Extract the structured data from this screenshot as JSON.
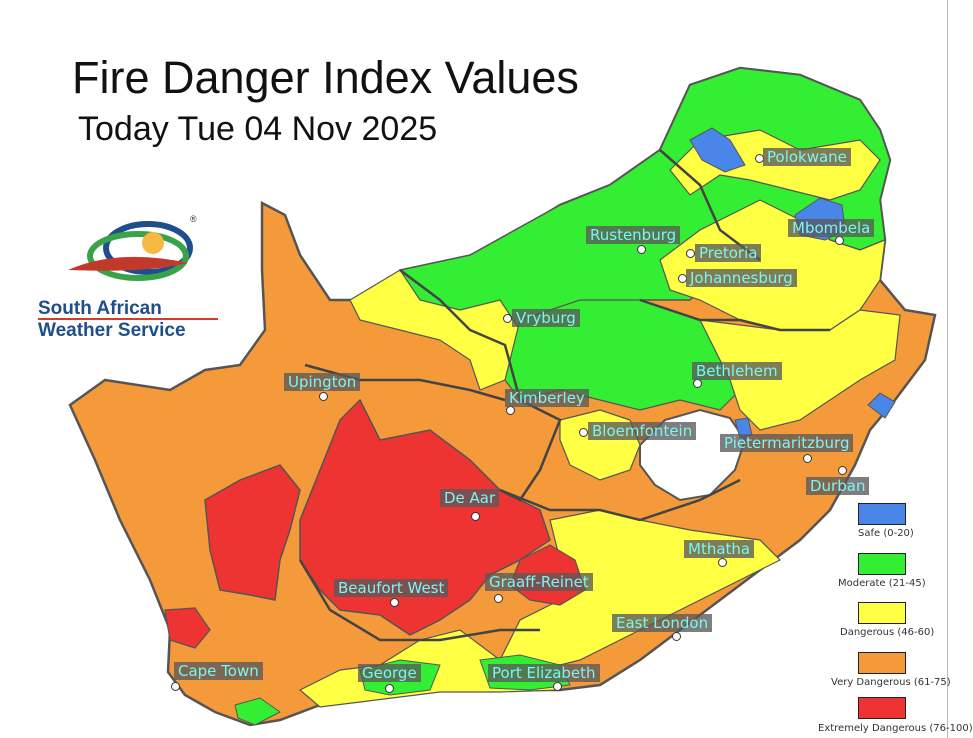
{
  "title": "Fire Danger Index Values",
  "subtitle": "Today Tue 04 Nov 2025",
  "logo": {
    "line1": "South African",
    "line2": "Weather Service",
    "reg": "®"
  },
  "colors": {
    "safe": "#4a86e8",
    "moderate": "#33ee33",
    "dangerous": "#ffff44",
    "very_dangerous": "#f59a3a",
    "extremely_dangerous": "#ee3333",
    "border": "#555555"
  },
  "legend": [
    {
      "label": "Safe (0-20)",
      "color": "#4a86e8"
    },
    {
      "label": "Moderate (21-45)",
      "color": "#33ee33"
    },
    {
      "label": "Dangerous (46-60)",
      "color": "#ffff44"
    },
    {
      "label": "Very Dangerous (61-75)",
      "color": "#f59a3a"
    },
    {
      "label": "Extremely Dangerous (76-100)",
      "color": "#ee3333"
    }
  ],
  "cities": [
    {
      "name": "Polokwane"
    },
    {
      "name": "Mbombela"
    },
    {
      "name": "Rustenburg"
    },
    {
      "name": "Pretoria"
    },
    {
      "name": "Johannesburg"
    },
    {
      "name": "Vryburg"
    },
    {
      "name": "Upington"
    },
    {
      "name": "Bethlehem"
    },
    {
      "name": "Kimberley"
    },
    {
      "name": "Bloemfontein"
    },
    {
      "name": "Pietermaritzburg"
    },
    {
      "name": "Durban"
    },
    {
      "name": "De Aar"
    },
    {
      "name": "Mthatha"
    },
    {
      "name": "Beaufort West"
    },
    {
      "name": "Graaff-Reinet"
    },
    {
      "name": "East London"
    },
    {
      "name": "Cape Town"
    },
    {
      "name": "George"
    },
    {
      "name": "Port Elizabeth"
    }
  ]
}
